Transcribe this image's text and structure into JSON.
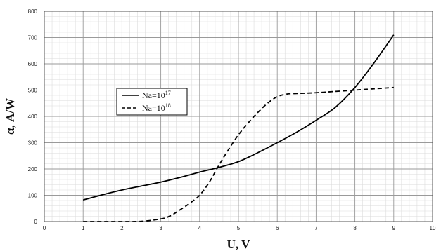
{
  "chart_data": {
    "type": "line",
    "xlabel": "U, V",
    "ylabel": "α, A/W",
    "xlim": [
      0,
      10
    ],
    "ylim": [
      0,
      800
    ],
    "x_major_ticks": [
      "0",
      "1",
      "2",
      "3",
      "4",
      "5",
      "6",
      "7",
      "8",
      "9",
      "10"
    ],
    "y_major_ticks": [
      "0",
      "100",
      "200",
      "300",
      "400",
      "500",
      "600",
      "700",
      "800"
    ],
    "grid": true,
    "legend_position": "center-left",
    "legend_frame": true,
    "series": [
      {
        "name": "Na=10",
        "name_superscript": "17",
        "style": "solid",
        "color": "#000000",
        "x": [
          1,
          1.5,
          2,
          2.5,
          3,
          3.5,
          4,
          4.5,
          5,
          5.5,
          6,
          6.5,
          7,
          7.5,
          8,
          8.5,
          9
        ],
        "y": [
          82,
          102,
          120,
          135,
          150,
          168,
          188,
          206,
          228,
          262,
          300,
          340,
          385,
          435,
          510,
          605,
          710
        ]
      },
      {
        "name": "Na=10",
        "name_superscript": "18",
        "style": "dashed",
        "color": "#000000",
        "x": [
          1,
          1.5,
          2,
          2.5,
          3,
          3.25,
          3.5,
          3.75,
          4,
          4.25,
          4.5,
          4.75,
          5,
          5.25,
          5.5,
          5.75,
          6,
          6.25,
          6.5,
          7,
          7.5,
          8,
          8.5,
          9
        ],
        "y": [
          0,
          0,
          0,
          1,
          10,
          22,
          45,
          70,
          100,
          150,
          215,
          275,
          330,
          375,
          415,
          450,
          475,
          485,
          487,
          490,
          495,
          500,
          505,
          510
        ]
      }
    ]
  }
}
